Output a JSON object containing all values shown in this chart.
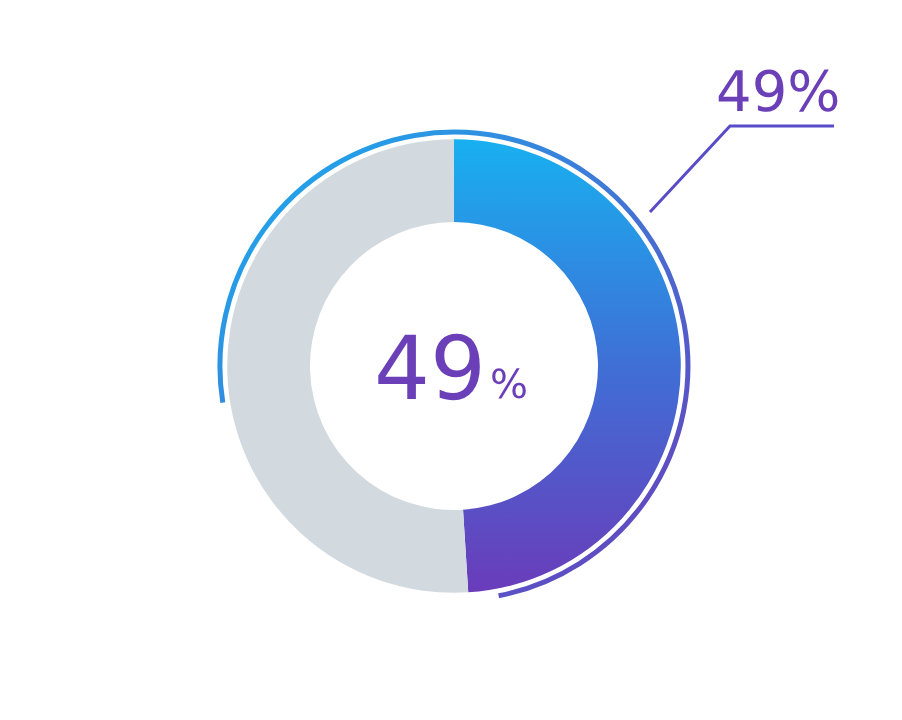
{
  "chart_data": {
    "type": "donut",
    "categories": [
      null,
      null
    ],
    "values": [
      49,
      51
    ],
    "colors": [
      "#3f6fd6",
      "#d3dadf"
    ],
    "value_labels": [
      "49%",
      null
    ],
    "annotations": [
      "49%"
    ]
  }
}
